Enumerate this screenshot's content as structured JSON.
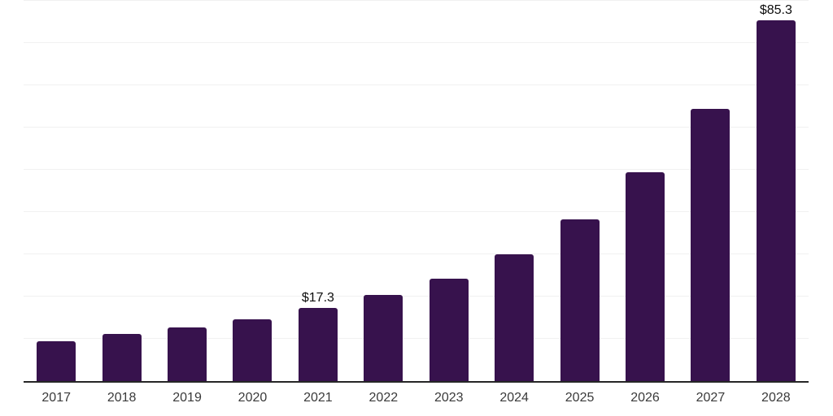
{
  "chart_data": {
    "type": "bar",
    "categories": [
      "2017",
      "2018",
      "2019",
      "2020",
      "2021",
      "2022",
      "2023",
      "2024",
      "2025",
      "2026",
      "2027",
      "2028"
    ],
    "values": [
      9.5,
      11.1,
      12.6,
      14.7,
      17.3,
      20.4,
      24.2,
      30.0,
      38.2,
      49.4,
      64.5,
      85.3
    ],
    "bar_value_labels": [
      "",
      "",
      "",
      "",
      "$17.3",
      "",
      "",
      "",
      "",
      "",
      "",
      "$85.3"
    ],
    "title": "",
    "xlabel": "",
    "ylabel": "",
    "ylim": [
      0,
      90
    ],
    "grid_step": 10,
    "grid": true,
    "legend_position": "none",
    "y_axis_labels_visible": false,
    "colors": {
      "bar": "#37124D",
      "gridline": "#F1F1F1",
      "axis_line": "#262626",
      "tick_label": "#3A3A3A",
      "value_label": "#0D0D0D",
      "background": "#FFFFFF"
    }
  }
}
